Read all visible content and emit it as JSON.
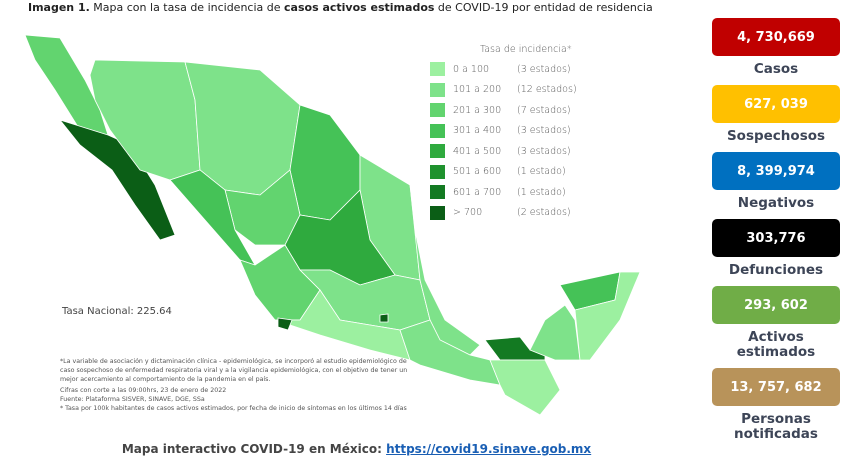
{
  "caption": {
    "prefix": "Imagen 1.",
    "text1": " Mapa con la tasa de incidencia de ",
    "bold": "casos activos estimados",
    "text2": " de COVID-19 por entidad de residencia"
  },
  "legend": {
    "title": "Tasa de incidencia*",
    "items": [
      {
        "range": "0 a  100",
        "count": "(3 estados)",
        "color": "#9cf0a0"
      },
      {
        "range": "101 a  200",
        "count": "(12 estados)",
        "color": "#7ee28a"
      },
      {
        "range": "201 a  300",
        "count": "(7 estados)",
        "color": "#62d46f"
      },
      {
        "range": "301 a  400",
        "count": "(3 estados)",
        "color": "#45c257"
      },
      {
        "range": "401 a  500",
        "count": "(3 estados)",
        "color": "#2faa3e"
      },
      {
        "range": "501 a  600",
        "count": "(1 estado)",
        "color": "#1f922e"
      },
      {
        "range": "601 a  700",
        "count": "(1 estado)",
        "color": "#137a22"
      },
      {
        "range": "> 700",
        "count": "(2 estados)",
        "color": "#0b5e16"
      }
    ]
  },
  "tasa_nacional": "Tasa Nacional: 225.64",
  "notes": [
    "*La variable de asociación y dictaminación clínica - epidemiológica, se incorporó al estudio epidemiológico de caso sospechoso de enfermedad respiratoria viral y a la vigilancia epidemiológica, con el objetivo de tener un mejor acercamiento al comportamiento de la pandemia en el país.",
    "Cifras con corte a las 09:00hrs, 23 de enero de 2022",
    "Fuente: Plataforma SISVER, SINAVE, DGE, SSa",
    "* Tasa por 100k habitantes de casos activos estimados, por fecha de inicio de síntomas en los últimos 14 días"
  ],
  "footer": {
    "text": "Mapa interactivo COVID-19 en México: ",
    "link": "https://covid19.sinave.gob.mx"
  },
  "stats": [
    {
      "value": "4, 730,669",
      "label": "Casos",
      "color": "#c00000"
    },
    {
      "value": "627, 039",
      "label": "Sospechosos",
      "color": "#ffc000"
    },
    {
      "value": "8, 399,974",
      "label": "Negativos",
      "color": "#0070c0"
    },
    {
      "value": "303,776",
      "label": "Defunciones",
      "color": "#000000"
    },
    {
      "value": "293, 602",
      "label": "Activos estimados",
      "color": "#70ad47"
    },
    {
      "value": "13, 757, 682",
      "label": "Personas notificadas",
      "color": "#b8935a"
    }
  ]
}
